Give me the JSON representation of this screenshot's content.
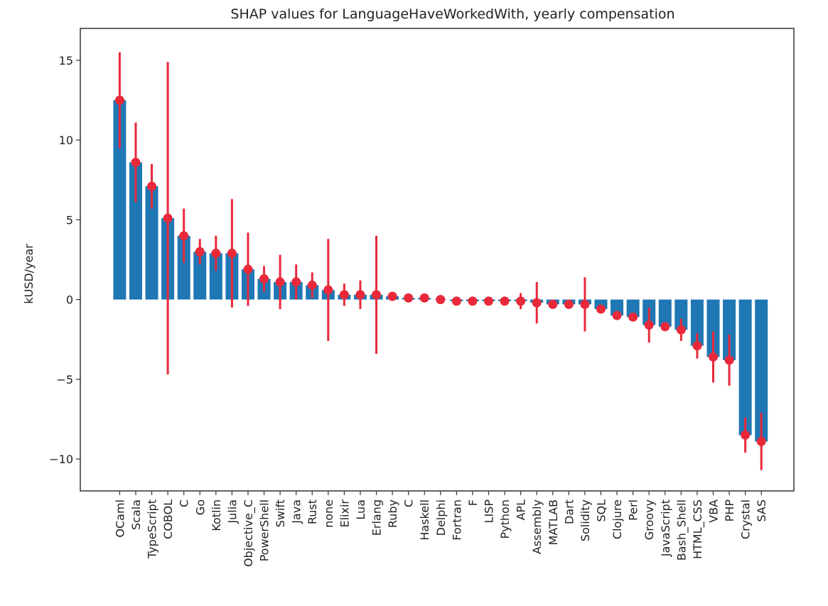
{
  "chart_data": {
    "type": "bar",
    "title": "SHAP values for LanguageHaveWorkedWith, yearly compensation",
    "xlabel": "",
    "ylabel": "kUSD/year",
    "ylim": [
      -12,
      17
    ],
    "yticks": [
      15,
      10,
      5,
      0,
      -5,
      -10
    ],
    "ytick_labels": [
      "15",
      "10",
      "5",
      "0",
      "−5",
      "−10"
    ],
    "grid": false,
    "colors": {
      "bar": "#1f77b4",
      "error": "#e8293a",
      "axis": "#333333"
    },
    "categories": [
      "OCaml",
      "Scala",
      "TypeScript",
      "COBOL",
      "C",
      "Go",
      "Kotlin",
      "Julia",
      "Objective_C",
      "PowerShell",
      "Swift",
      "Java",
      "Rust",
      "none",
      "Elixir",
      "Lua",
      "Erlang",
      "Ruby",
      "C",
      "Haskell",
      "Delphi",
      "Fortran",
      "F",
      "LISP",
      "Python",
      "APL",
      "Assembly",
      "MATLAB",
      "Dart",
      "Solidity",
      "SQL",
      "Clojure",
      "Perl",
      "Groovy",
      "JavaScript",
      "Bash_Shell",
      "HTML_CSS",
      "VBA",
      "PHP",
      "Crystal",
      "SAS"
    ],
    "values": [
      12.5,
      8.6,
      7.1,
      5.1,
      4.0,
      3.0,
      2.9,
      2.9,
      1.9,
      1.3,
      1.1,
      1.1,
      0.9,
      0.6,
      0.3,
      0.3,
      0.3,
      0.2,
      0.1,
      0.1,
      0.0,
      -0.1,
      -0.1,
      -0.1,
      -0.1,
      -0.1,
      -0.2,
      -0.3,
      -0.3,
      -0.3,
      -0.6,
      -1.0,
      -1.1,
      -1.6,
      -1.7,
      -1.9,
      -2.9,
      -3.6,
      -3.8,
      -8.5,
      -8.9
    ],
    "errors": [
      3.0,
      2.5,
      1.4,
      9.8,
      1.7,
      0.8,
      1.1,
      3.4,
      2.3,
      0.8,
      1.7,
      1.1,
      0.8,
      3.2,
      0.7,
      0.9,
      3.7,
      0.0,
      0.0,
      0.0,
      0.0,
      0.0,
      0.0,
      0.0,
      0.0,
      0.5,
      1.3,
      0.0,
      0.0,
      1.7,
      0.0,
      0.0,
      0.0,
      1.1,
      0.0,
      0.7,
      0.8,
      1.6,
      1.6,
      1.1,
      1.8
    ]
  }
}
